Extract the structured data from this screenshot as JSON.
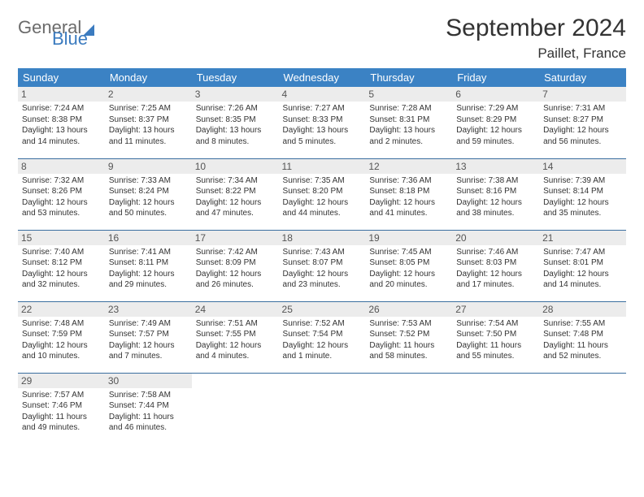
{
  "logo": {
    "part1": "General",
    "part2": "Blue"
  },
  "title": "September 2024",
  "location": "Paillet, France",
  "colors": {
    "header_bg": "#3b82c4",
    "header_text": "#ffffff",
    "daynum_bg": "#ececec",
    "row_border": "#3b6fa0",
    "logo_gray": "#6b6b6b",
    "logo_blue": "#3b7bbf"
  },
  "weekdays": [
    "Sunday",
    "Monday",
    "Tuesday",
    "Wednesday",
    "Thursday",
    "Friday",
    "Saturday"
  ],
  "weeks": [
    [
      {
        "n": "1",
        "sr": "Sunrise: 7:24 AM",
        "ss": "Sunset: 8:38 PM",
        "dl": "Daylight: 13 hours and 14 minutes."
      },
      {
        "n": "2",
        "sr": "Sunrise: 7:25 AM",
        "ss": "Sunset: 8:37 PM",
        "dl": "Daylight: 13 hours and 11 minutes."
      },
      {
        "n": "3",
        "sr": "Sunrise: 7:26 AM",
        "ss": "Sunset: 8:35 PM",
        "dl": "Daylight: 13 hours and 8 minutes."
      },
      {
        "n": "4",
        "sr": "Sunrise: 7:27 AM",
        "ss": "Sunset: 8:33 PM",
        "dl": "Daylight: 13 hours and 5 minutes."
      },
      {
        "n": "5",
        "sr": "Sunrise: 7:28 AM",
        "ss": "Sunset: 8:31 PM",
        "dl": "Daylight: 13 hours and 2 minutes."
      },
      {
        "n": "6",
        "sr": "Sunrise: 7:29 AM",
        "ss": "Sunset: 8:29 PM",
        "dl": "Daylight: 12 hours and 59 minutes."
      },
      {
        "n": "7",
        "sr": "Sunrise: 7:31 AM",
        "ss": "Sunset: 8:27 PM",
        "dl": "Daylight: 12 hours and 56 minutes."
      }
    ],
    [
      {
        "n": "8",
        "sr": "Sunrise: 7:32 AM",
        "ss": "Sunset: 8:26 PM",
        "dl": "Daylight: 12 hours and 53 minutes."
      },
      {
        "n": "9",
        "sr": "Sunrise: 7:33 AM",
        "ss": "Sunset: 8:24 PM",
        "dl": "Daylight: 12 hours and 50 minutes."
      },
      {
        "n": "10",
        "sr": "Sunrise: 7:34 AM",
        "ss": "Sunset: 8:22 PM",
        "dl": "Daylight: 12 hours and 47 minutes."
      },
      {
        "n": "11",
        "sr": "Sunrise: 7:35 AM",
        "ss": "Sunset: 8:20 PM",
        "dl": "Daylight: 12 hours and 44 minutes."
      },
      {
        "n": "12",
        "sr": "Sunrise: 7:36 AM",
        "ss": "Sunset: 8:18 PM",
        "dl": "Daylight: 12 hours and 41 minutes."
      },
      {
        "n": "13",
        "sr": "Sunrise: 7:38 AM",
        "ss": "Sunset: 8:16 PM",
        "dl": "Daylight: 12 hours and 38 minutes."
      },
      {
        "n": "14",
        "sr": "Sunrise: 7:39 AM",
        "ss": "Sunset: 8:14 PM",
        "dl": "Daylight: 12 hours and 35 minutes."
      }
    ],
    [
      {
        "n": "15",
        "sr": "Sunrise: 7:40 AM",
        "ss": "Sunset: 8:12 PM",
        "dl": "Daylight: 12 hours and 32 minutes."
      },
      {
        "n": "16",
        "sr": "Sunrise: 7:41 AM",
        "ss": "Sunset: 8:11 PM",
        "dl": "Daylight: 12 hours and 29 minutes."
      },
      {
        "n": "17",
        "sr": "Sunrise: 7:42 AM",
        "ss": "Sunset: 8:09 PM",
        "dl": "Daylight: 12 hours and 26 minutes."
      },
      {
        "n": "18",
        "sr": "Sunrise: 7:43 AM",
        "ss": "Sunset: 8:07 PM",
        "dl": "Daylight: 12 hours and 23 minutes."
      },
      {
        "n": "19",
        "sr": "Sunrise: 7:45 AM",
        "ss": "Sunset: 8:05 PM",
        "dl": "Daylight: 12 hours and 20 minutes."
      },
      {
        "n": "20",
        "sr": "Sunrise: 7:46 AM",
        "ss": "Sunset: 8:03 PM",
        "dl": "Daylight: 12 hours and 17 minutes."
      },
      {
        "n": "21",
        "sr": "Sunrise: 7:47 AM",
        "ss": "Sunset: 8:01 PM",
        "dl": "Daylight: 12 hours and 14 minutes."
      }
    ],
    [
      {
        "n": "22",
        "sr": "Sunrise: 7:48 AM",
        "ss": "Sunset: 7:59 PM",
        "dl": "Daylight: 12 hours and 10 minutes."
      },
      {
        "n": "23",
        "sr": "Sunrise: 7:49 AM",
        "ss": "Sunset: 7:57 PM",
        "dl": "Daylight: 12 hours and 7 minutes."
      },
      {
        "n": "24",
        "sr": "Sunrise: 7:51 AM",
        "ss": "Sunset: 7:55 PM",
        "dl": "Daylight: 12 hours and 4 minutes."
      },
      {
        "n": "25",
        "sr": "Sunrise: 7:52 AM",
        "ss": "Sunset: 7:54 PM",
        "dl": "Daylight: 12 hours and 1 minute."
      },
      {
        "n": "26",
        "sr": "Sunrise: 7:53 AM",
        "ss": "Sunset: 7:52 PM",
        "dl": "Daylight: 11 hours and 58 minutes."
      },
      {
        "n": "27",
        "sr": "Sunrise: 7:54 AM",
        "ss": "Sunset: 7:50 PM",
        "dl": "Daylight: 11 hours and 55 minutes."
      },
      {
        "n": "28",
        "sr": "Sunrise: 7:55 AM",
        "ss": "Sunset: 7:48 PM",
        "dl": "Daylight: 11 hours and 52 minutes."
      }
    ],
    [
      {
        "n": "29",
        "sr": "Sunrise: 7:57 AM",
        "ss": "Sunset: 7:46 PM",
        "dl": "Daylight: 11 hours and 49 minutes."
      },
      {
        "n": "30",
        "sr": "Sunrise: 7:58 AM",
        "ss": "Sunset: 7:44 PM",
        "dl": "Daylight: 11 hours and 46 minutes."
      },
      null,
      null,
      null,
      null,
      null
    ]
  ]
}
